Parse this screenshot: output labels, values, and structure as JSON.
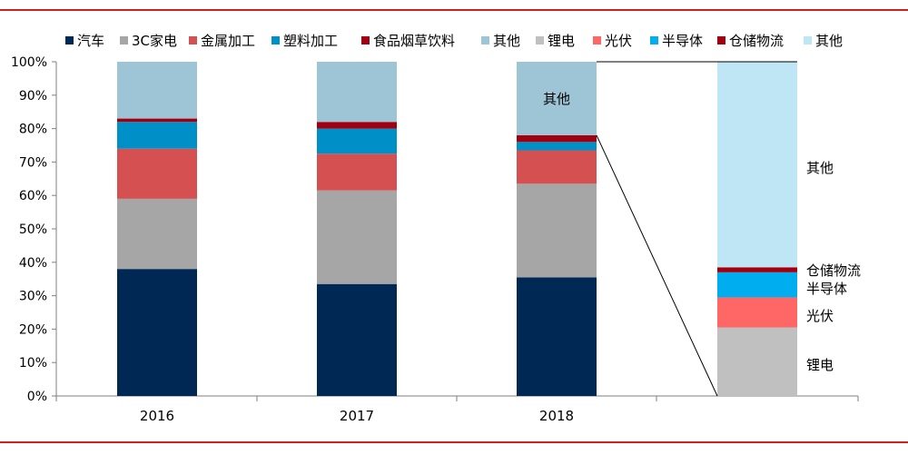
{
  "chart_data": {
    "type": "bar",
    "stacked": true,
    "categories": [
      "2016",
      "2017",
      "2018"
    ],
    "ylim": [
      0,
      100
    ],
    "yticks": [
      "0%",
      "10%",
      "20%",
      "30%",
      "40%",
      "50%",
      "60%",
      "70%",
      "80%",
      "90%",
      "100%"
    ],
    "series": [
      {
        "name": "汽车",
        "color": "#002855",
        "values": [
          38,
          33.5,
          35.5
        ]
      },
      {
        "name": "3C家电",
        "color": "#a6a6a6",
        "values": [
          21,
          28,
          28
        ]
      },
      {
        "name": "金属加工",
        "color": "#d55050",
        "values": [
          15,
          11,
          10
        ]
      },
      {
        "name": "塑料加工",
        "color": "#0090c8",
        "values": [
          8,
          7.5,
          2.5
        ]
      },
      {
        "name": "食品烟草饮料",
        "color": "#a00010",
        "values": [
          1,
          2,
          2
        ]
      },
      {
        "name": "其他",
        "color": "#9ec5d6",
        "values": [
          17,
          18,
          22
        ]
      }
    ],
    "breakdown": {
      "series": [
        {
          "name": "锂电",
          "color": "#c0c0c0",
          "value": 20.5
        },
        {
          "name": "光伏",
          "color": "#ff6666",
          "value": 9
        },
        {
          "name": "半导体",
          "color": "#00aeef",
          "value": 7.5
        },
        {
          "name": "仓储物流",
          "color": "#a00010",
          "value": 1.5
        },
        {
          "name": "其他",
          "color": "#bfe6f5",
          "value": 61.5
        }
      ]
    },
    "annotations": {
      "in_bar_label": "其他",
      "right_labels": [
        "其他",
        "仓储物流",
        "半导体",
        "光伏",
        "锂电"
      ]
    },
    "legend_position": "top"
  }
}
